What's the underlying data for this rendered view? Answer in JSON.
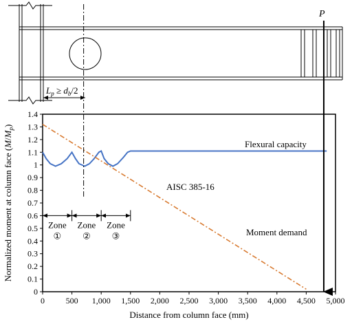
{
  "chart_data": {
    "type": "line",
    "xlabel": "Distance from column face (mm)",
    "ylabel": "Normalized moment at column face (M/Mp)",
    "xlim": [
      0,
      5000
    ],
    "ylim": [
      0,
      1.4
    ],
    "x_ticks": [
      "0",
      "500",
      "1,000",
      "1,500",
      "2,000",
      "2,500",
      "3,000",
      "3,500",
      "4,000",
      "4,500",
      "5,000"
    ],
    "y_ticks": [
      "0",
      "0.1",
      "0.2",
      "0.3",
      "0.4",
      "0.5",
      "0.6",
      "0.7",
      "0.8",
      "0.9",
      "1",
      "1.1",
      "1.2",
      "1.3",
      "1.4"
    ],
    "grid": false,
    "series": [
      {
        "name": "Flexural capacity",
        "color": "#4472c4",
        "style": "solid",
        "x": [
          0,
          60,
          130,
          220,
          320,
          420,
          500,
          560,
          620,
          720,
          800,
          880,
          960,
          1000,
          1050,
          1120,
          1200,
          1280,
          1380,
          1450,
          1500,
          2500,
          3500,
          4500,
          4850
        ],
        "y": [
          1.1,
          1.05,
          1.01,
          0.99,
          1.01,
          1.05,
          1.1,
          1.05,
          1.01,
          0.99,
          1.01,
          1.05,
          1.1,
          1.11,
          1.05,
          1.01,
          0.99,
          1.01,
          1.06,
          1.1,
          1.11,
          1.11,
          1.11,
          1.11,
          1.11
        ]
      },
      {
        "name": "Moment demand",
        "color": "#d87a30",
        "style": "dashdot",
        "x": [
          0,
          4500
        ],
        "y": [
          1.32,
          0.02
        ]
      }
    ],
    "annotations": {
      "flexural_capacity": "Flexural capacity",
      "aisc": "AISC 385-16",
      "moment_demand": "Moment demand",
      "zones": [
        {
          "label": "Zone",
          "number": "①",
          "from": 0,
          "to": 500
        },
        {
          "label": "Zone",
          "number": "②",
          "from": 500,
          "to": 1000
        },
        {
          "label": "Zone",
          "number": "③",
          "from": 1000,
          "to": 1500
        }
      ],
      "hinge_x": 700,
      "load_x": 4800,
      "load_label": "P",
      "lp_label": "Lp ≥ db/2"
    }
  }
}
